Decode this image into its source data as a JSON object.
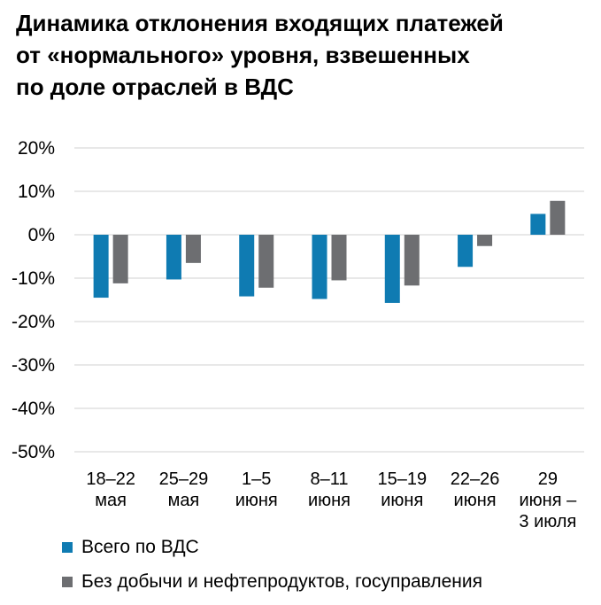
{
  "chart_data": {
    "type": "bar",
    "title_lines": [
      "Динамика отклонения входящих платежей",
      "от «нормального» уровня, взвешенных",
      "по доле отраслей в ВДС"
    ],
    "categories": [
      [
        "18–22",
        "мая"
      ],
      [
        "25–29",
        "мая"
      ],
      [
        "1–5",
        "июня"
      ],
      [
        "8–11",
        "июня"
      ],
      [
        "15–19",
        "июня"
      ],
      [
        "22–26",
        "июня"
      ],
      [
        "29",
        "июня –",
        "3 июля"
      ]
    ],
    "series": [
      {
        "name": "Всего по ВДС",
        "color": "#0f7bb2",
        "values": [
          -14.5,
          -10.3,
          -14.2,
          -14.8,
          -15.7,
          -7.4,
          4.8
        ]
      },
      {
        "name": "Без добычи и нефтепродуктов, госуправления",
        "color": "#6d6e71",
        "values": [
          -11.2,
          -6.5,
          -12.2,
          -10.5,
          -11.7,
          -2.6,
          7.8
        ]
      }
    ],
    "yticks": [
      "20%",
      "10%",
      "0%",
      "-10%",
      "-20%",
      "-30%",
      "-40%",
      "-50%"
    ],
    "ylim": [
      -50,
      20
    ],
    "grid": true,
    "legend_position": "bottom"
  }
}
